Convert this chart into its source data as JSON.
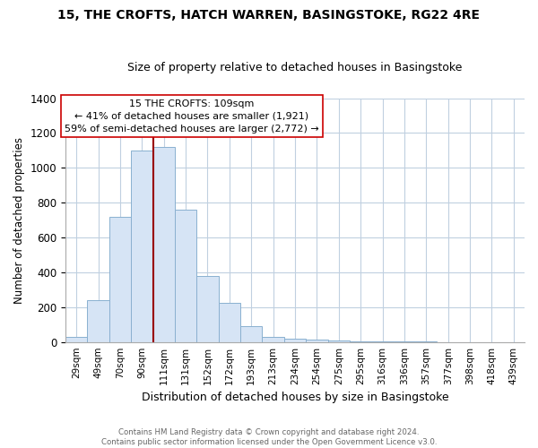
{
  "title": "15, THE CROFTS, HATCH WARREN, BASINGSTOKE, RG22 4RE",
  "subtitle": "Size of property relative to detached houses in Basingstoke",
  "xlabel": "Distribution of detached houses by size in Basingstoke",
  "ylabel": "Number of detached properties",
  "bar_labels": [
    "29sqm",
    "49sqm",
    "70sqm",
    "90sqm",
    "111sqm",
    "131sqm",
    "152sqm",
    "172sqm",
    "193sqm",
    "213sqm",
    "234sqm",
    "254sqm",
    "275sqm",
    "295sqm",
    "316sqm",
    "336sqm",
    "357sqm",
    "377sqm",
    "398sqm",
    "418sqm",
    "439sqm"
  ],
  "bar_heights": [
    30,
    240,
    720,
    1100,
    1120,
    760,
    380,
    225,
    90,
    30,
    20,
    15,
    10,
    5,
    3,
    2,
    1,
    0,
    0,
    0,
    0
  ],
  "bar_color": "#d6e4f5",
  "bar_edge_color": "#8ab0d0",
  "vline_x_index": 4,
  "vline_color": "#990000",
  "ylim": [
    0,
    1400
  ],
  "yticks": [
    0,
    200,
    400,
    600,
    800,
    1000,
    1200,
    1400
  ],
  "annotation_title": "15 THE CROFTS: 109sqm",
  "annotation_line1": "← 41% of detached houses are smaller (1,921)",
  "annotation_line2": "59% of semi-detached houses are larger (2,772) →",
  "annotation_box_color": "#ffffff",
  "annotation_box_edge": "#cc0000",
  "footer_line1": "Contains HM Land Registry data © Crown copyright and database right 2024.",
  "footer_line2": "Contains public sector information licensed under the Open Government Licence v3.0.",
  "background_color": "#ffffff",
  "grid_color": "#c0d0e0"
}
